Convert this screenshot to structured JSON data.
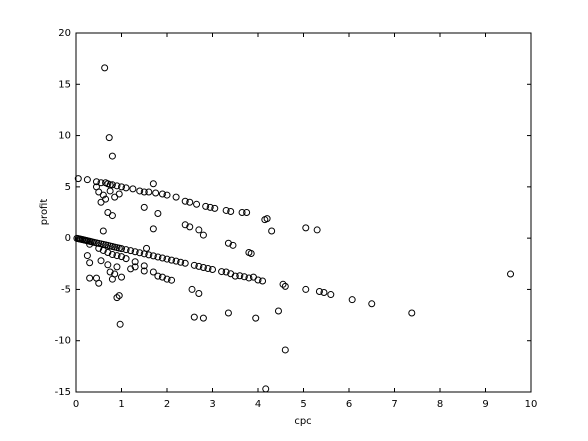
{
  "chart_data": {
    "type": "scatter",
    "xlabel": "cpc",
    "ylabel": "profit",
    "xlim": [
      0,
      10
    ],
    "ylim": [
      -15,
      20
    ],
    "xticks": [
      0,
      1,
      2,
      3,
      4,
      5,
      6,
      7,
      8,
      9,
      10
    ],
    "yticks": [
      -15,
      -10,
      -5,
      0,
      5,
      10,
      15,
      20
    ],
    "grid": false,
    "color": "#000000",
    "x": [
      0.02,
      0.05,
      0.08,
      0.1,
      0.13,
      0.15,
      0.18,
      0.2,
      0.23,
      0.26,
      0.3,
      0.33,
      0.36,
      0.4,
      0.45,
      0.5,
      0.55,
      0.6,
      0.65,
      0.7,
      0.75,
      0.8,
      0.85,
      0.9,
      0.95,
      1.0,
      1.1,
      1.2,
      1.3,
      1.4,
      1.5,
      1.6,
      1.7,
      1.8,
      1.9,
      2.0,
      2.1,
      2.2,
      2.3,
      2.4,
      2.6,
      2.7,
      2.8,
      2.9,
      3.0,
      3.2,
      3.4,
      3.6,
      3.7,
      3.8,
      4.0,
      4.1,
      0.3,
      0.5,
      0.6,
      0.7,
      0.8,
      0.9,
      1.0,
      1.1,
      1.3,
      1.5,
      1.7,
      1.8,
      1.9,
      2.0,
      2.1,
      0.05,
      0.25,
      0.45,
      0.55,
      0.65,
      0.7,
      0.75,
      0.8,
      0.9,
      1.0,
      1.1,
      1.25,
      1.4,
      1.5,
      1.6,
      1.75,
      1.9,
      2.0,
      2.2,
      2.4,
      2.5,
      2.65,
      2.85,
      2.95,
      3.05,
      3.3,
      3.4,
      3.65,
      3.75,
      0.45,
      0.5,
      0.6,
      0.55,
      0.65,
      0.7,
      0.8,
      0.75,
      0.95,
      0.85,
      1.7,
      1.8,
      1.5,
      1.7,
      0.6,
      2.4,
      2.5,
      2.7,
      2.8,
      3.35,
      3.45,
      3.8,
      3.85,
      0.25,
      0.3,
      0.3,
      0.45,
      0.5,
      0.55,
      0.7,
      0.75,
      0.8,
      0.85,
      0.9,
      1.0,
      1.3,
      1.2,
      1.5,
      1.55,
      3.3,
      3.5,
      3.9,
      0.63,
      0.73,
      0.8,
      9.55,
      7.38,
      6.5,
      6.07,
      5.6,
      5.45,
      5.35,
      5.05,
      4.6,
      4.17,
      4.45,
      3.95,
      3.35,
      2.8,
      2.6,
      2.7,
      2.55,
      0.97,
      0.9,
      0.95,
      5.05,
      5.3,
      4.2,
      4.15,
      4.3,
      4.55,
      4.6
    ],
    "y": [
      -0.02,
      -0.05,
      -0.08,
      -0.1,
      -0.13,
      -0.15,
      -0.18,
      -0.2,
      -0.23,
      -0.27,
      -0.3,
      -0.34,
      -0.37,
      -0.41,
      -0.46,
      -0.51,
      -0.56,
      -0.61,
      -0.66,
      -0.71,
      -0.77,
      -0.82,
      -0.87,
      -0.92,
      -0.97,
      -1.02,
      -1.12,
      -1.22,
      -1.33,
      -1.43,
      -1.53,
      -1.63,
      -1.73,
      -1.84,
      -1.94,
      -2.04,
      -2.14,
      -2.24,
      -2.35,
      -2.45,
      -2.65,
      -2.75,
      -2.86,
      -2.96,
      -3.06,
      -3.26,
      -3.47,
      -3.67,
      -3.77,
      -3.88,
      -4.08,
      -4.18,
      -0.6,
      -1.0,
      -1.2,
      -1.4,
      -1.6,
      -1.7,
      -1.8,
      -2.0,
      -2.3,
      -2.7,
      -3.3,
      -3.7,
      -3.8,
      -4.0,
      -4.1,
      5.8,
      5.7,
      5.5,
      5.4,
      5.4,
      5.3,
      5.2,
      5.2,
      5.1,
      5.0,
      4.9,
      4.8,
      4.6,
      4.5,
      4.5,
      4.4,
      4.3,
      4.2,
      4.0,
      3.6,
      3.5,
      3.3,
      3.1,
      3.0,
      2.9,
      2.7,
      2.6,
      2.5,
      2.5,
      5.0,
      4.5,
      4.2,
      3.5,
      3.8,
      2.5,
      2.2,
      4.6,
      4.3,
      4.0,
      5.3,
      2.4,
      3.0,
      0.9,
      0.7,
      1.3,
      1.1,
      0.8,
      0.3,
      -0.5,
      -0.7,
      -1.4,
      -1.5,
      -1.7,
      -2.4,
      -3.9,
      -3.9,
      -4.4,
      -2.2,
      -2.6,
      -3.3,
      -4.0,
      -3.5,
      -2.8,
      -3.8,
      -2.8,
      -3.0,
      -3.2,
      -1.0,
      -3.3,
      -3.7,
      -3.8,
      16.6,
      9.8,
      8.0,
      -3.5,
      -7.3,
      -6.4,
      -6.0,
      -5.5,
      -5.3,
      -5.2,
      -5.0,
      -10.9,
      -14.7,
      -7.1,
      -7.8,
      -7.3,
      -7.8,
      -7.7,
      -5.4,
      -5.0,
      -8.4,
      -5.8,
      -5.6,
      1.0,
      0.8,
      1.9,
      1.8,
      0.7,
      -4.5,
      -4.7
    ]
  }
}
